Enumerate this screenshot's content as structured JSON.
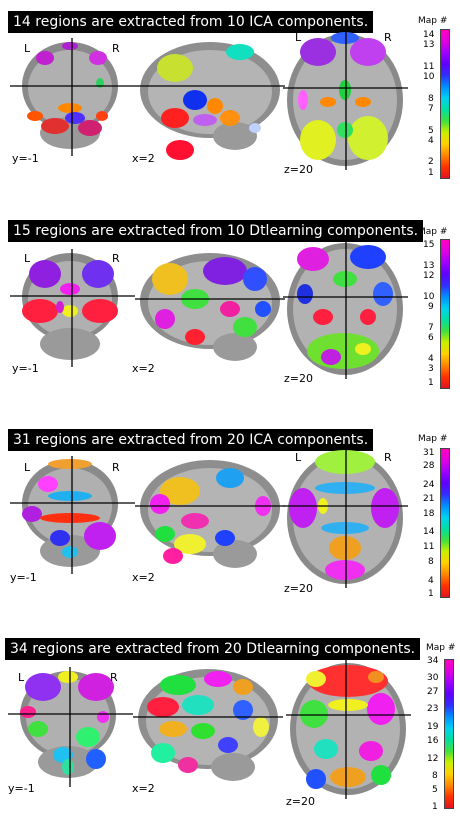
{
  "colorbar_title": "Map #",
  "orient_left": "L",
  "orient_right": "R",
  "colorbar_colors": [
    "#e0141e",
    "#ff3300",
    "#ff8800",
    "#ffd000",
    "#c8f000",
    "#40e040",
    "#00e0a0",
    "#00d0f0",
    "#0090ff",
    "#3030ff",
    "#6000ff",
    "#a000ff",
    "#e000e0",
    "#ff00c0"
  ],
  "panels": [
    {
      "title": "14 regions are extracted from 10 ICA components.",
      "coords": [
        "y=-1",
        "x=2",
        "z=20"
      ],
      "ticks": [
        "14",
        "13",
        "11",
        "10",
        "8",
        "7",
        "5",
        "4",
        "2",
        "1"
      ]
    },
    {
      "title": "15 regions are extracted from 10 Dtlearning components.",
      "coords": [
        "y=-1",
        "x=2",
        "z=20"
      ],
      "ticks": [
        "15",
        "13",
        "12",
        "10",
        "9",
        "7",
        "6",
        "4",
        "3",
        "1"
      ]
    },
    {
      "title": "31 regions are extracted from 20 ICA components.",
      "coords": [
        "y=-1",
        "x=2",
        "z=20"
      ],
      "ticks": [
        "31",
        "28",
        "24",
        "21",
        "18",
        "14",
        "11",
        "8",
        "4",
        "1"
      ]
    },
    {
      "title": "34 regions are extracted from 20 Dtlearning components.",
      "coords": [
        "y=-1",
        "x=2",
        "z=20"
      ],
      "ticks": [
        "34",
        "30",
        "27",
        "23",
        "19",
        "16",
        "12",
        "8",
        "5",
        "1"
      ]
    }
  ]
}
